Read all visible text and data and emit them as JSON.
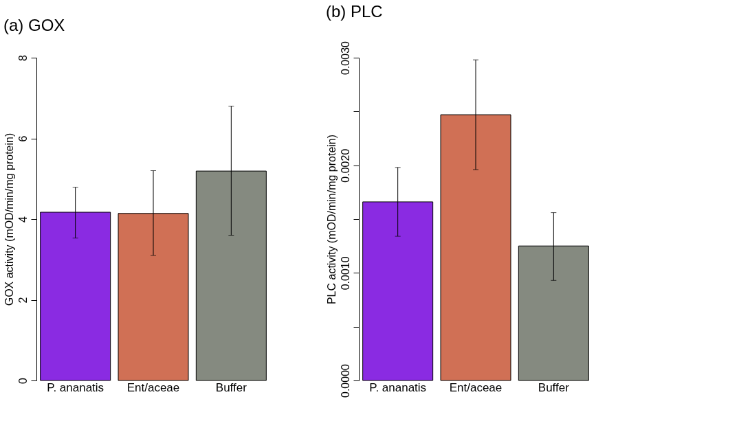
{
  "chart_data": [
    {
      "type": "bar",
      "title": "(a)     GOX",
      "ylabel": "GOX activity (mOD/min/mg protein)",
      "categories": [
        "P. ananatis",
        "Ent/aceae",
        "Buffer"
      ],
      "values": [
        4.17,
        4.14,
        5.19
      ],
      "colors": [
        "#8a2be2",
        "#d07055",
        "#858a80"
      ],
      "errors": [
        [
          3.53,
          4.79
        ],
        [
          3.1,
          5.2
        ],
        [
          3.6,
          6.8
        ]
      ],
      "ylim": [
        0,
        8
      ],
      "yticks": [
        0,
        2,
        4,
        6,
        8
      ],
      "grid": false
    },
    {
      "type": "bar",
      "title": "(b)     PLC",
      "ylabel": "PLC activity (mOD/min/mg protein)",
      "categories": [
        "P. ananatis",
        "Ent/aceae",
        "Buffer"
      ],
      "values": [
        0.00166,
        0.00247,
        0.00125
      ],
      "colors": [
        "#8a2be2",
        "#d07055",
        "#858a80"
      ],
      "errors": [
        [
          0.00134,
          0.00198
        ],
        [
          0.00196,
          0.00298
        ],
        [
          0.00093,
          0.00156
        ]
      ],
      "ylim": [
        0,
        0.003
      ],
      "yticks": [
        {
          "value": 0,
          "label": "0.0000"
        },
        {
          "value": 0.0005,
          "label": null
        },
        {
          "value": 0.001,
          "label": "0.0010"
        },
        {
          "value": 0.0015,
          "label": null
        },
        {
          "value": 0.002,
          "label": "0.0020"
        },
        {
          "value": 0.0025,
          "label": null
        },
        {
          "value": 0.003,
          "label": "0.0030"
        }
      ],
      "grid": false
    }
  ]
}
